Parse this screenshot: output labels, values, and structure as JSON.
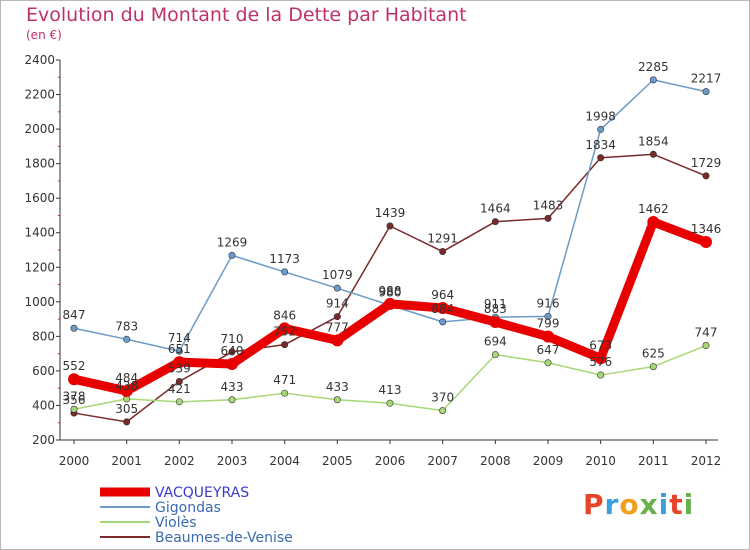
{
  "header": {
    "title": "Evolution du Montant de la Dette par Habitant",
    "subtitle": "(en €)"
  },
  "logo": {
    "text": "Proxiti",
    "colors": [
      "#e8442a",
      "#3aa0dc",
      "#f0a020",
      "#6ab04c",
      "#3aa0dc",
      "#e8442a",
      "#6ab04c"
    ]
  },
  "chart_data": {
    "type": "line",
    "x": [
      "2000",
      "2001",
      "2002",
      "2003",
      "2004",
      "2005",
      "2006",
      "2007",
      "2008",
      "2009",
      "2010",
      "2011",
      "2012"
    ],
    "ylim": [
      200,
      2400
    ],
    "yticks": [
      200,
      400,
      600,
      800,
      1000,
      1200,
      1400,
      1600,
      1800,
      2000,
      2200,
      2400
    ],
    "grid": false,
    "legend_position": "bottom-left",
    "series": [
      {
        "name": "VACQUEYRAS",
        "color": "#e80000",
        "values": [
          552,
          484,
          651,
          640,
          846,
          777,
          988,
          964,
          883,
          799,
          673,
          1462,
          1346
        ]
      },
      {
        "name": "Gigondas",
        "color": "#6b9bc8",
        "values": [
          847,
          783,
          714,
          1269,
          1173,
          1079,
          980,
          884,
          911,
          916,
          1998,
          2285,
          2217
        ]
      },
      {
        "name": "Violès",
        "color": "#a6d876",
        "values": [
          378,
          438,
          421,
          433,
          471,
          433,
          413,
          370,
          694,
          647,
          576,
          625,
          747
        ]
      },
      {
        "name": "Beaumes-de-Venise",
        "color": "#7a2a2a",
        "values": [
          356,
          305,
          539,
          710,
          752,
          914,
          1439,
          1291,
          1464,
          1483,
          1834,
          1854,
          1729
        ]
      }
    ]
  }
}
